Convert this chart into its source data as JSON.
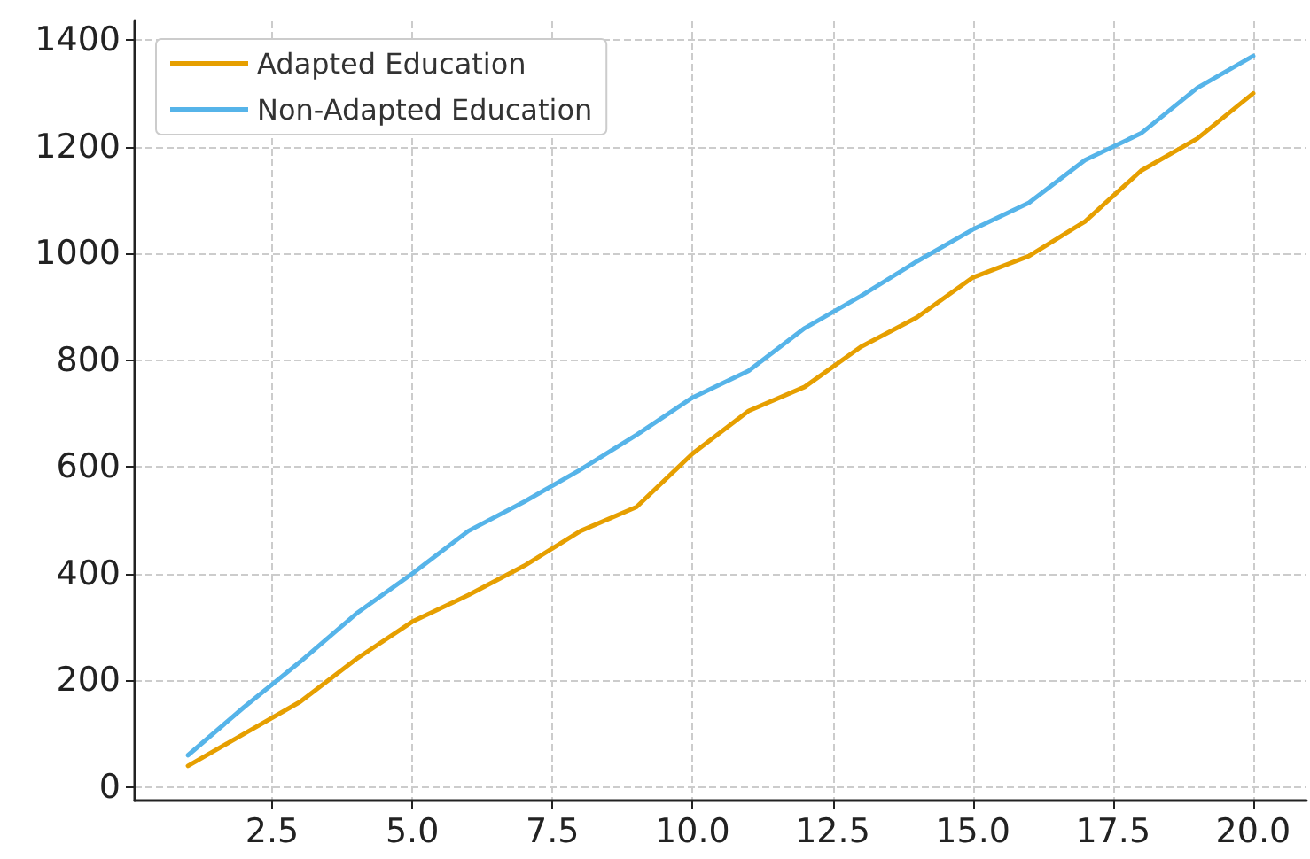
{
  "chart_data": {
    "type": "line",
    "x": [
      1,
      2,
      3,
      4,
      5,
      6,
      7,
      8,
      9,
      10,
      11,
      12,
      13,
      14,
      15,
      16,
      17,
      18,
      19,
      20
    ],
    "series": [
      {
        "name": "Adapted Education",
        "color": "#e69f00",
        "values": [
          40,
          100,
          160,
          240,
          310,
          360,
          415,
          480,
          525,
          625,
          705,
          750,
          825,
          880,
          955,
          995,
          1060,
          1155,
          1215,
          1300
        ]
      },
      {
        "name": "Non-Adapted Education",
        "color": "#56b4e9",
        "values": [
          60,
          150,
          235,
          325,
          400,
          480,
          535,
          595,
          660,
          730,
          780,
          860,
          920,
          985,
          1045,
          1095,
          1175,
          1225,
          1310,
          1370
        ]
      }
    ],
    "xlim": [
      0.05,
      20.95
    ],
    "xticks": [
      {
        "value": 2.5,
        "label": "2.5"
      },
      {
        "value": 5,
        "label": "5.0"
      },
      {
        "value": 7.5,
        "label": "7.5"
      },
      {
        "value": 10,
        "label": "10.0"
      },
      {
        "value": 12.5,
        "label": "12.5"
      },
      {
        "value": 15,
        "label": "15.0"
      },
      {
        "value": 17.5,
        "label": "17.5"
      },
      {
        "value": 20,
        "label": "20.0"
      }
    ],
    "ylim": [
      -25,
      1435
    ],
    "yticks": [
      0,
      200,
      400,
      600,
      800,
      1000,
      1200,
      1400
    ],
    "grid": true,
    "legend": "top left",
    "marker": "none",
    "line_style": "solid"
  }
}
